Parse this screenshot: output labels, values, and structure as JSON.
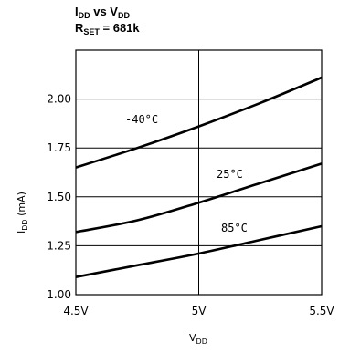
{
  "chart_data": {
    "type": "line",
    "title": {
      "line1_main_a": "I",
      "line1_sub_a": "DD",
      "line1_mid": " vs V",
      "line1_sub_b": "DD",
      "line2_main": "R",
      "line2_sub": "SET",
      "line2_rest": " = 681k"
    },
    "xlabel": {
      "main": "V",
      "sub": "DD"
    },
    "ylabel": {
      "main": "I",
      "sub": "DD",
      "rest": " (mA)"
    },
    "xlim": [
      4.5,
      5.5
    ],
    "ylim": [
      1.0,
      2.25
    ],
    "x_ticks": [
      {
        "value": 4.5,
        "label": "4.5V"
      },
      {
        "value": 5.0,
        "label": "5V"
      },
      {
        "value": 5.5,
        "label": "5.5V"
      }
    ],
    "y_ticks": [
      {
        "value": 1.0,
        "label": "1.00"
      },
      {
        "value": 1.25,
        "label": "1.25"
      },
      {
        "value": 1.5,
        "label": "1.50"
      },
      {
        "value": 1.75,
        "label": "1.75"
      },
      {
        "value": 2.0,
        "label": "2.00"
      }
    ],
    "grid": true,
    "series": [
      {
        "name": "-40°C",
        "x": [
          4.5,
          4.75,
          5.0,
          5.25,
          5.5
        ],
        "y": [
          1.65,
          1.75,
          1.86,
          1.98,
          2.11
        ]
      },
      {
        "name": "25°C",
        "x": [
          4.5,
          4.75,
          5.0,
          5.25,
          5.5
        ],
        "y": [
          1.32,
          1.38,
          1.47,
          1.57,
          1.67
        ]
      },
      {
        "name": "85°C",
        "x": [
          4.5,
          4.75,
          5.0,
          5.25,
          5.5
        ],
        "y": [
          1.09,
          1.15,
          1.21,
          1.28,
          1.35
        ]
      }
    ]
  }
}
